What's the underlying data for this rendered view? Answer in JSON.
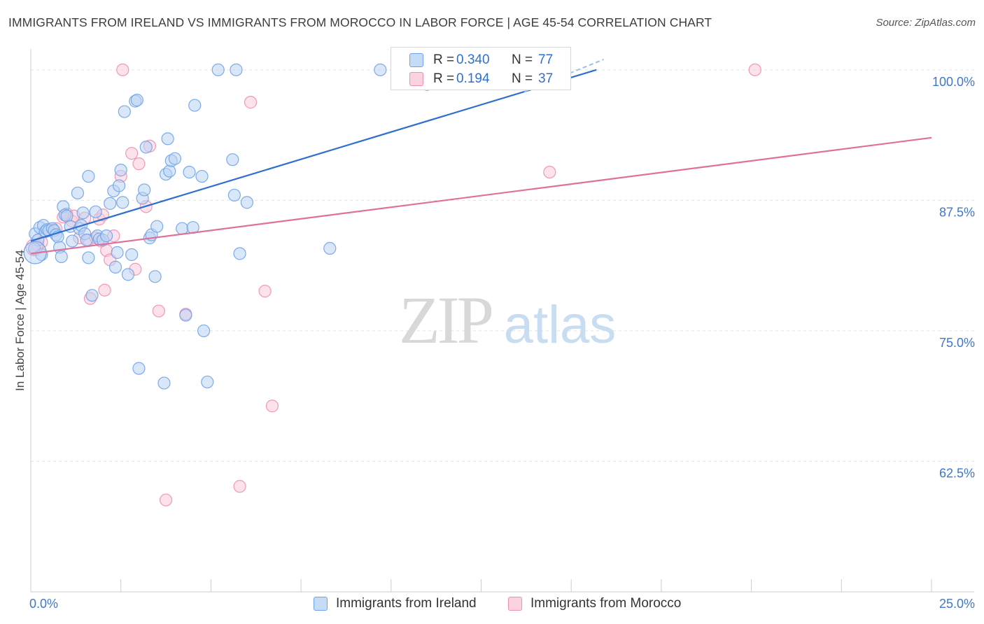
{
  "header": {
    "title": "IMMIGRANTS FROM IRELAND VS IMMIGRANTS FROM MOROCCO IN LABOR FORCE | AGE 45-54 CORRELATION CHART",
    "source": "Source: ZipAtlas.com"
  },
  "watermark": {
    "zip": "ZIP",
    "atlas": "atlas"
  },
  "stats_legend": {
    "rows": [
      {
        "r_label": "R =",
        "r_value": "0.340",
        "n_label": "N =",
        "n_value": "77",
        "color": "#6fa3e8"
      },
      {
        "r_label": "R =",
        "r_value": "0.194",
        "n_label": "N =",
        "n_value": "37",
        "color": "#f08fb0"
      }
    ]
  },
  "bottom_legend": {
    "items": [
      {
        "label": "Immigrants from Ireland",
        "color": "#6fa3e8"
      },
      {
        "label": "Immigrants from Morocco",
        "color": "#f08fb0"
      }
    ]
  },
  "chart_data": {
    "type": "scatter",
    "title": "IMMIGRANTS FROM IRELAND VS IMMIGRANTS FROM MOROCCO IN LABOR FORCE | AGE 45-54 CORRELATION CHART",
    "xlabel": "",
    "ylabel": "In Labor Force | Age 45-54",
    "xlim": [
      0,
      25
    ],
    "ylim": [
      50.0,
      102.0
    ],
    "x_ticks_labeled": [
      {
        "value": 0,
        "label": "0.0%"
      },
      {
        "value": 25,
        "label": "25.0%"
      }
    ],
    "x_minor_ticks": [
      2.5,
      5.0,
      7.5,
      10.0,
      12.5,
      15.0,
      17.5,
      20.0,
      22.5,
      25.0
    ],
    "y_ticks": [
      {
        "value": 100.0,
        "label": "100.0%"
      },
      {
        "value": 87.5,
        "label": "87.5%"
      },
      {
        "value": 75.0,
        "label": "75.0%"
      },
      {
        "value": 62.5,
        "label": "62.5%"
      }
    ],
    "grid": true,
    "series": [
      {
        "name": "Immigrants from Ireland",
        "color": "#6fa3e8",
        "trend": {
          "x0": 0.0,
          "y0": 83.6,
          "x1": 15.7,
          "y1": 100.0,
          "dashed_to_x": 15.7,
          "dashed_to_y": 102.0
        },
        "points": [
          [
            0.12,
            84.3
          ],
          [
            0.2,
            83.7
          ],
          [
            0.25,
            84.9
          ],
          [
            0.35,
            85.1
          ],
          [
            0.4,
            84.5
          ],
          [
            0.45,
            84.7
          ],
          [
            0.5,
            84.6
          ],
          [
            0.6,
            84.8
          ],
          [
            0.65,
            84.6
          ],
          [
            0.7,
            84.2
          ],
          [
            0.75,
            84.0
          ],
          [
            0.8,
            83.0
          ],
          [
            0.85,
            82.1
          ],
          [
            0.9,
            86.9
          ],
          [
            0.95,
            86.1
          ],
          [
            1.0,
            86.0
          ],
          [
            1.1,
            85.0
          ],
          [
            1.15,
            83.6
          ],
          [
            1.3,
            88.2
          ],
          [
            1.35,
            84.8
          ],
          [
            1.4,
            85.1
          ],
          [
            1.45,
            86.3
          ],
          [
            1.5,
            84.3
          ],
          [
            1.55,
            83.7
          ],
          [
            1.6,
            89.8
          ],
          [
            1.6,
            82.0
          ],
          [
            1.7,
            78.4
          ],
          [
            1.8,
            86.4
          ],
          [
            1.85,
            84.1
          ],
          [
            1.9,
            83.8
          ],
          [
            2.0,
            83.7
          ],
          [
            2.1,
            84.1
          ],
          [
            2.2,
            87.2
          ],
          [
            2.3,
            88.4
          ],
          [
            2.35,
            81.1
          ],
          [
            2.4,
            82.5
          ],
          [
            2.45,
            88.9
          ],
          [
            2.5,
            90.4
          ],
          [
            2.55,
            87.3
          ],
          [
            2.6,
            96.0
          ],
          [
            2.7,
            80.4
          ],
          [
            2.8,
            82.3
          ],
          [
            2.9,
            97.0
          ],
          [
            2.95,
            97.1
          ],
          [
            3.0,
            71.4
          ],
          [
            3.1,
            87.7
          ],
          [
            3.15,
            88.5
          ],
          [
            3.2,
            92.6
          ],
          [
            3.3,
            83.9
          ],
          [
            3.35,
            84.2
          ],
          [
            3.45,
            80.2
          ],
          [
            3.5,
            85.0
          ],
          [
            3.7,
            70.0
          ],
          [
            3.75,
            90.0
          ],
          [
            3.8,
            93.4
          ],
          [
            3.85,
            90.3
          ],
          [
            3.9,
            91.3
          ],
          [
            4.0,
            91.5
          ],
          [
            4.2,
            84.8
          ],
          [
            4.3,
            76.5
          ],
          [
            4.4,
            90.2
          ],
          [
            4.5,
            84.9
          ],
          [
            4.55,
            96.6
          ],
          [
            4.75,
            89.8
          ],
          [
            4.8,
            75.0
          ],
          [
            4.9,
            70.1
          ],
          [
            5.2,
            100.0
          ],
          [
            5.6,
            91.4
          ],
          [
            5.65,
            88.0
          ],
          [
            5.7,
            100.0
          ],
          [
            5.8,
            82.4
          ],
          [
            6.0,
            87.3
          ],
          [
            8.3,
            82.9
          ],
          [
            9.7,
            100.0
          ],
          [
            11.0,
            98.6
          ],
          [
            0.1,
            82.9
          ],
          [
            0.3,
            82.3
          ]
        ]
      },
      {
        "name": "Immigrants from Morocco",
        "color": "#f08fb0",
        "trend": {
          "x0": 0.0,
          "y0": 82.4,
          "x1": 25.0,
          "y1": 93.5
        },
        "points": [
          [
            0.1,
            82.8
          ],
          [
            0.2,
            83.2
          ],
          [
            0.3,
            83.5
          ],
          [
            0.5,
            84.7
          ],
          [
            0.7,
            84.8
          ],
          [
            0.9,
            85.9
          ],
          [
            1.0,
            86.2
          ],
          [
            1.15,
            85.5
          ],
          [
            1.2,
            86.0
          ],
          [
            1.35,
            83.9
          ],
          [
            1.5,
            85.8
          ],
          [
            1.6,
            83.7
          ],
          [
            1.65,
            78.1
          ],
          [
            1.8,
            83.9
          ],
          [
            1.9,
            85.7
          ],
          [
            1.95,
            83.6
          ],
          [
            2.0,
            86.1
          ],
          [
            2.05,
            78.9
          ],
          [
            2.1,
            82.7
          ],
          [
            2.2,
            81.8
          ],
          [
            2.3,
            84.1
          ],
          [
            2.5,
            89.8
          ],
          [
            2.55,
            100.0
          ],
          [
            2.8,
            92.0
          ],
          [
            2.9,
            80.9
          ],
          [
            3.0,
            91.0
          ],
          [
            3.2,
            86.9
          ],
          [
            3.3,
            92.7
          ],
          [
            3.55,
            76.9
          ],
          [
            3.75,
            58.8
          ],
          [
            4.3,
            76.6
          ],
          [
            5.8,
            60.1
          ],
          [
            6.1,
            96.9
          ],
          [
            6.5,
            78.8
          ],
          [
            6.7,
            67.8
          ],
          [
            14.4,
            90.2
          ],
          [
            20.1,
            100.0
          ]
        ]
      }
    ]
  }
}
